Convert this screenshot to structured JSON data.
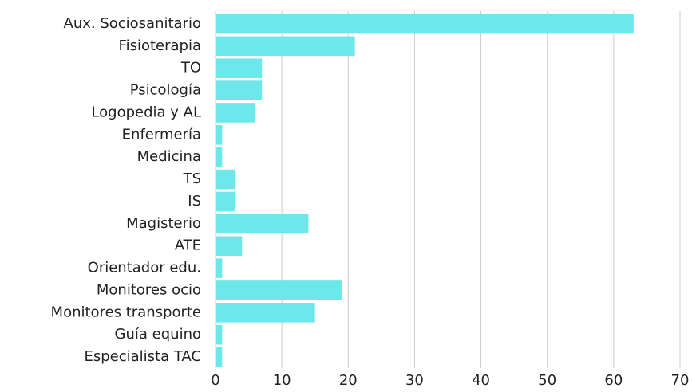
{
  "chart_data": {
    "type": "bar",
    "orientation": "horizontal",
    "categories": [
      "Aux. Sociosanitario",
      "Fisioterapia",
      "TO",
      "Psicología",
      "Logopedia y AL",
      "Enfermería",
      "Medicina",
      "TS",
      "IS",
      "Magisterio",
      "ATE",
      "Orientador edu.",
      "Monitores ocio",
      "Monitores transporte",
      "Guía equino",
      "Especialista TAC"
    ],
    "values": [
      63,
      21,
      7,
      7,
      6,
      1,
      1,
      3,
      3,
      14,
      4,
      1,
      19,
      15,
      1,
      1
    ],
    "color": "#6ee7ea",
    "xlim": [
      0,
      70
    ],
    "xticks": [
      0,
      10,
      20,
      30,
      40,
      50,
      60,
      70
    ],
    "grid": true
  }
}
